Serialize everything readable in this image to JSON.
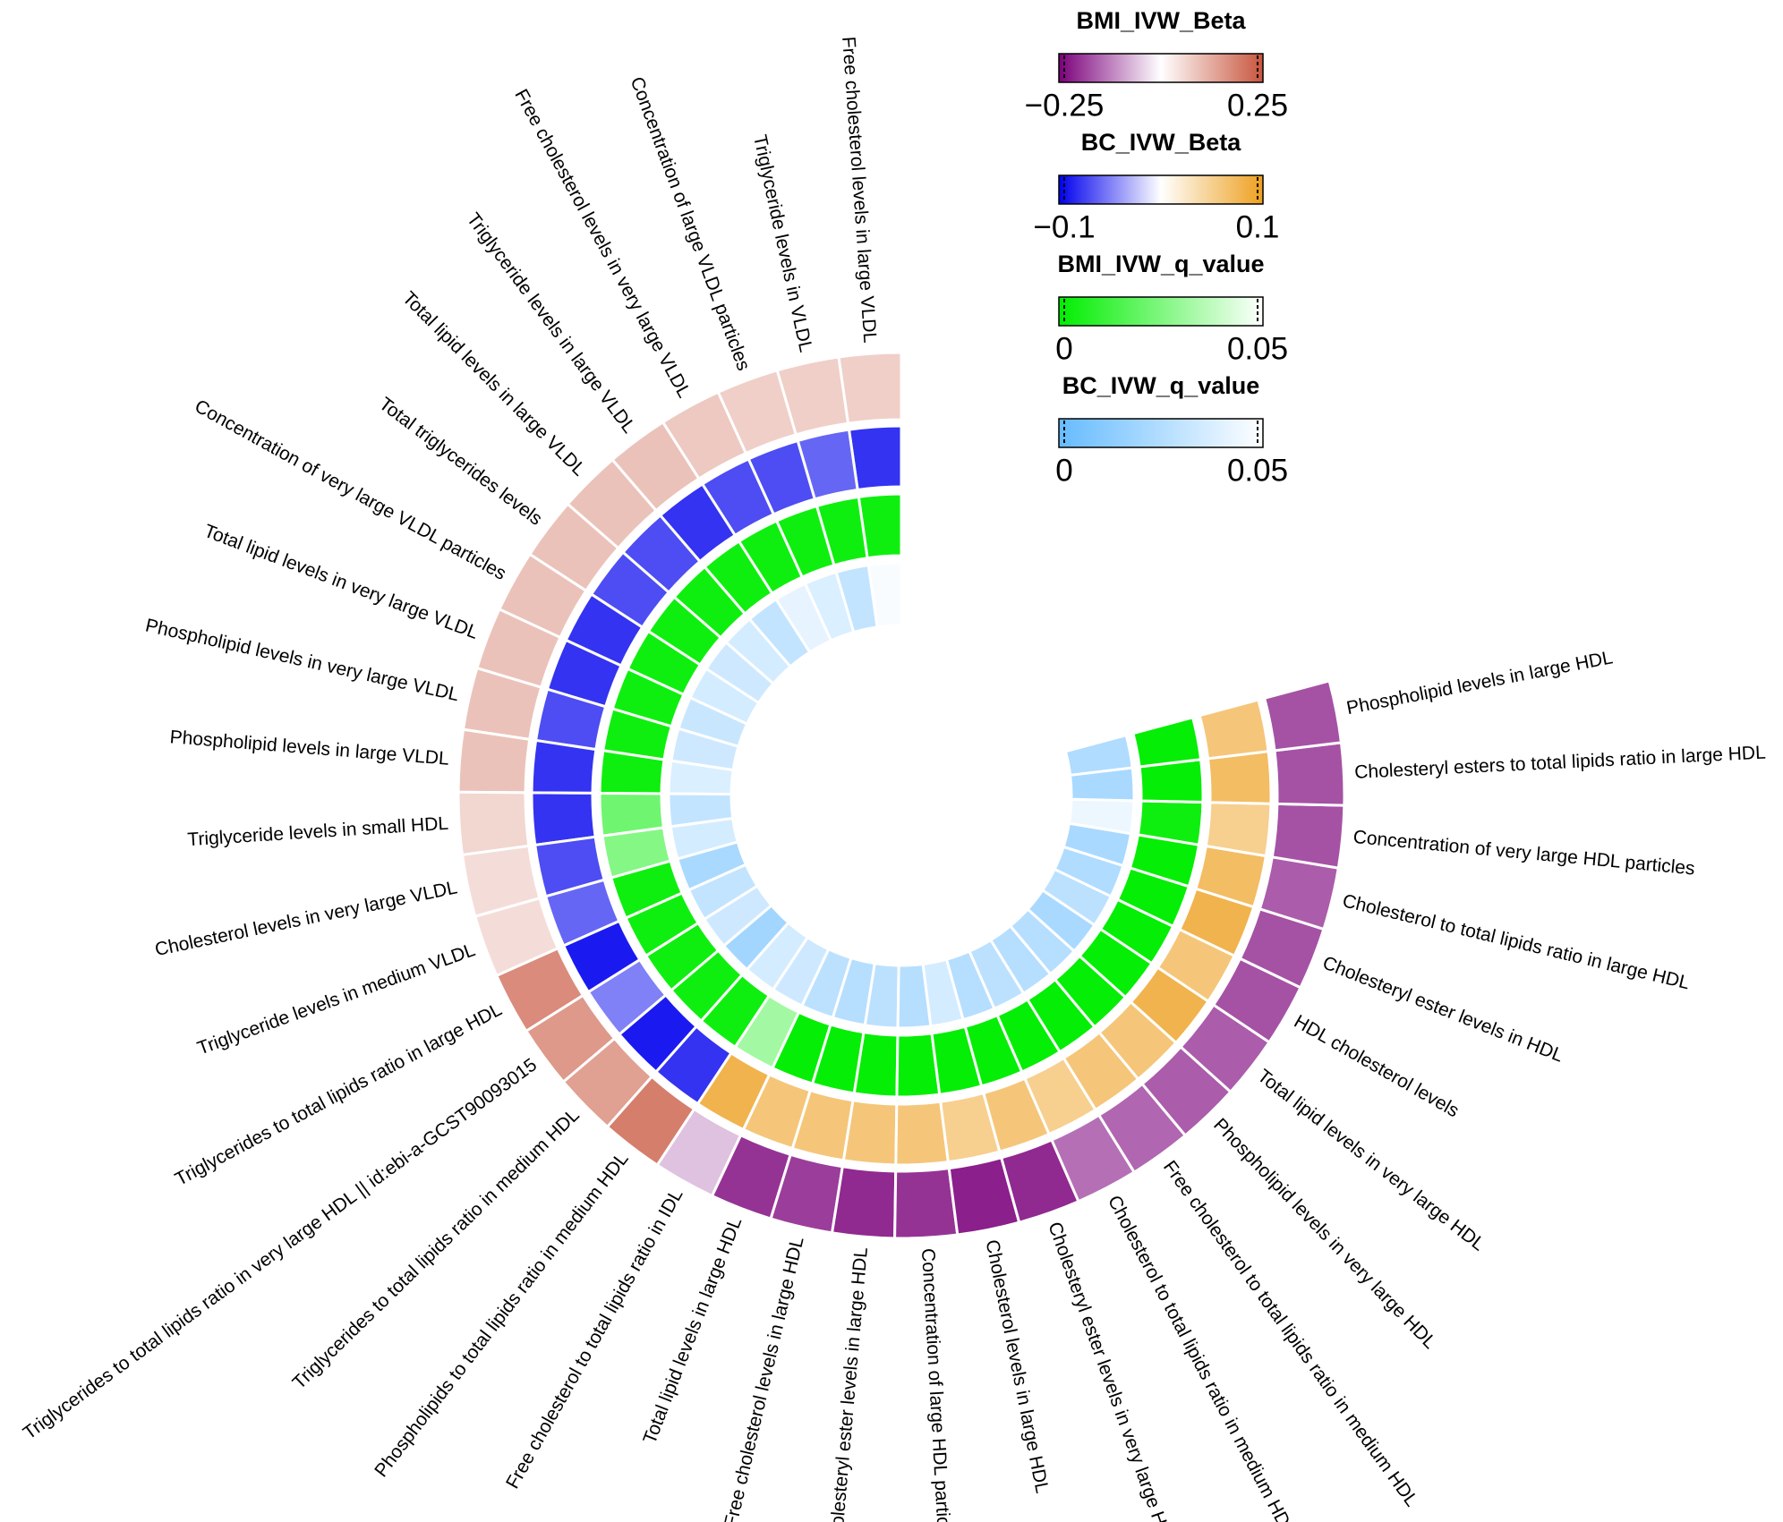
{
  "chart_data": {
    "type": "circular-heatmap",
    "categories": [
      "Free cholesterol levels in large VLDL",
      "Triglyceride levels in VLDL",
      "Concentration of large VLDL particles",
      "Free cholesterol levels in very large VLDL",
      "Triglyceride levels in large VLDL",
      "Total lipid levels in large VLDL",
      "Total triglycerides levels",
      "Concentration of very large VLDL particles",
      "Total lipid levels in very large VLDL",
      "Phospholipid levels in very large VLDL",
      "Phospholipid levels in large VLDL",
      "Triglyceride levels in small HDL",
      "Cholesterol levels in very large VLDL",
      "Triglyceride levels in medium VLDL",
      "Triglycerides to total lipids ratio in large HDL",
      "Triglycerides to total lipids ratio in very large HDL || id:ebi-a-GCST90093015",
      "Triglycerides to total lipids ratio in medium HDL",
      "Phospholipids to total lipids ratio in medium HDL",
      "Free cholesterol to total lipids ratio in IDL",
      "Total lipid levels in large HDL",
      "Free cholesterol levels in large HDL",
      "Cholesteryl ester levels in large HDL",
      "Concentration of large HDL particles",
      "Cholesterol levels in large HDL",
      "Cholesteryl ester levels in very large HDL",
      "Cholesterol to total lipids ratio in medium HDL",
      "Free cholesterol to total lipids ratio in medium HDL",
      "Phospholipid levels in very large HDL",
      "Total lipid levels in very large HDL",
      "HDL cholesterol levels",
      "Cholesteryl ester levels in HDL",
      "Cholesterol to total lipids ratio in large HDL",
      "Concentration of very large HDL particles",
      "Cholesteryl esters to total lipids ratio in large HDL",
      "Phospholipid levels in large HDL"
    ],
    "series": [
      {
        "name": "BMI_IVW_Beta",
        "colors": [
          "#7b007b",
          "#ffffff",
          "#c8553d"
        ],
        "lim": [
          -0.25,
          0.25
        ],
        "ticks": [
          {
            "value": -0.25,
            "label": "−0.25"
          },
          0.25
        ],
        "values": [
          0.07,
          0.07,
          0.07,
          0.08,
          0.09,
          0.09,
          0.09,
          0.09,
          0.09,
          0.09,
          0.09,
          0.06,
          0.05,
          0.05,
          0.17,
          0.15,
          0.14,
          0.19,
          -0.06,
          -0.2,
          -0.19,
          -0.21,
          -0.2,
          -0.22,
          -0.21,
          -0.14,
          -0.15,
          -0.16,
          -0.16,
          -0.17,
          -0.17,
          -0.16,
          -0.17,
          -0.17,
          -0.17
        ]
      },
      {
        "name": "BC_IVW_Beta",
        "colors": [
          "#0000ee",
          "#ffffff",
          "#eea020"
        ],
        "lim": [
          -0.1,
          0.1
        ],
        "ticks": [
          {
            "value": -0.1,
            "label": "−0.1"
          },
          0.1
        ],
        "values": [
          -0.08,
          -0.06,
          -0.07,
          -0.07,
          -0.08,
          -0.07,
          -0.07,
          -0.08,
          -0.08,
          -0.07,
          -0.08,
          -0.08,
          -0.07,
          -0.06,
          -0.09,
          -0.05,
          -0.09,
          -0.08,
          0.08,
          0.06,
          0.06,
          0.06,
          0.06,
          0.05,
          0.06,
          0.05,
          0.06,
          0.06,
          0.08,
          0.06,
          0.08,
          0.07,
          0.05,
          0.07,
          0.06
        ]
      },
      {
        "name": "BMI_IVW_q_value",
        "colors": [
          "#00ee00",
          "#ffffff"
        ],
        "lim": [
          0,
          0.05
        ],
        "ticks": [
          0,
          0.05
        ],
        "values": [
          0.003,
          0.003,
          0.003,
          0.003,
          0.003,
          0.003,
          0.003,
          0.003,
          0.003,
          0.003,
          0.003,
          0.022,
          0.026,
          0.003,
          0.003,
          0.003,
          0.003,
          0.003,
          0.032,
          0.001,
          0.001,
          0.001,
          0.001,
          0.001,
          0.001,
          0.001,
          0.001,
          0.001,
          0.001,
          0.001,
          0.001,
          0.001,
          0.003,
          0.001,
          0.001
        ]
      },
      {
        "name": "BC_IVW_q_value",
        "colors": [
          "#66bbff",
          "#ffffff"
        ],
        "lim": [
          0,
          0.05
        ],
        "ticks": [
          0,
          0.05
        ],
        "values": [
          0.048,
          0.03,
          0.038,
          0.042,
          0.03,
          0.036,
          0.034,
          0.036,
          0.032,
          0.034,
          0.038,
          0.03,
          0.036,
          0.022,
          0.03,
          0.034,
          0.02,
          0.036,
          0.034,
          0.028,
          0.026,
          0.028,
          0.026,
          0.036,
          0.026,
          0.028,
          0.026,
          0.026,
          0.022,
          0.028,
          0.024,
          0.022,
          0.044,
          0.022,
          0.024
        ]
      }
    ]
  }
}
